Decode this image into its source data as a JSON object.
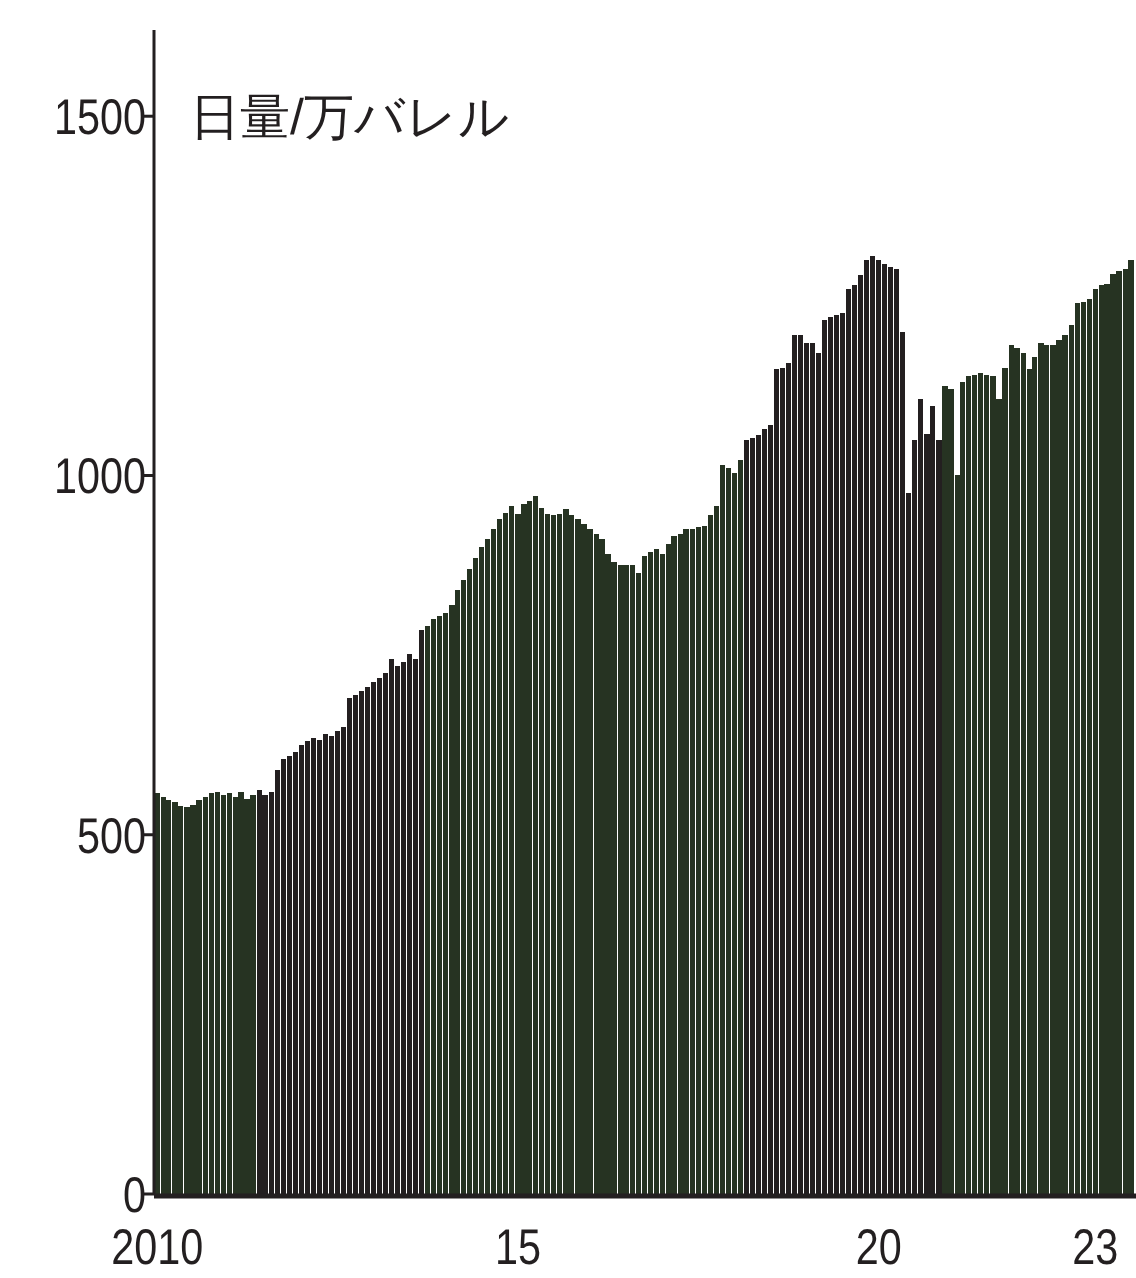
{
  "chart_data": {
    "type": "bar",
    "ylabel": "日量/万バレル",
    "xlim": [
      "2009-12-16",
      "2023-07-16"
    ],
    "ylim": [
      0,
      1620
    ],
    "xticks": [
      {
        "value": "2010-01",
        "label": "2010"
      },
      {
        "value": "2015-01",
        "label": "15"
      },
      {
        "value": "2020-01",
        "label": "20"
      },
      {
        "value": "2023-01",
        "label": "23"
      }
    ],
    "yticks": [
      0,
      500,
      1000,
      1500
    ],
    "series": [
      {
        "color": "#263322",
        "x": [
          "2010-01",
          "2010-02",
          "2010-03",
          "2010-04",
          "2010-05",
          "2010-06",
          "2010-07",
          "2010-08",
          "2010-09",
          "2010-10",
          "2010-11",
          "2010-12",
          "2011-01",
          "2011-02",
          "2011-03",
          "2011-04",
          "2011-05"
        ],
        "values": [
          558,
          552,
          548,
          545,
          540,
          538,
          542,
          548,
          552,
          558,
          560,
          555,
          558,
          552,
          560,
          550,
          555
        ]
      },
      {
        "color": "#231f20",
        "x": [
          "2011-06",
          "2011-07",
          "2011-08",
          "2011-09",
          "2011-10",
          "2011-11",
          "2011-12",
          "2012-01",
          "2012-02",
          "2012-03",
          "2012-04",
          "2012-05",
          "2012-06",
          "2012-07",
          "2012-08",
          "2012-09",
          "2012-10",
          "2012-11",
          "2012-12",
          "2013-01",
          "2013-02",
          "2013-03",
          "2013-04",
          "2013-05",
          "2013-06",
          "2013-07",
          "2013-08",
          "2013-09"
        ],
        "values": [
          562,
          555,
          560,
          590,
          605,
          610,
          615,
          625,
          630,
          635,
          632,
          640,
          638,
          645,
          650,
          690,
          695,
          700,
          705,
          712,
          718,
          725,
          744,
          735,
          740,
          752,
          745,
          785
        ]
      },
      {
        "color": "#263322",
        "x": [
          "2013-10",
          "2013-11",
          "2013-12",
          "2014-01",
          "2014-02",
          "2014-03",
          "2014-04",
          "2014-05",
          "2014-06",
          "2014-07",
          "2014-08",
          "2014-09",
          "2014-10",
          "2014-11",
          "2014-12",
          "2015-01",
          "2015-02",
          "2015-03",
          "2015-04",
          "2015-05",
          "2015-06",
          "2015-07",
          "2015-08",
          "2015-09",
          "2015-10",
          "2015-11",
          "2015-12",
          "2016-01",
          "2016-02",
          "2016-03",
          "2016-04",
          "2016-05",
          "2016-06",
          "2016-07",
          "2016-08",
          "2016-09",
          "2016-10",
          "2016-11",
          "2016-12",
          "2017-01",
          "2017-02",
          "2017-03",
          "2017-04",
          "2017-05",
          "2017-06",
          "2017-07",
          "2017-08",
          "2017-09",
          "2017-10",
          "2017-11",
          "2017-12",
          "2018-01",
          "2018-02"
        ],
        "values": [
          790,
          800,
          805,
          808,
          820,
          840,
          855,
          870,
          885,
          900,
          911,
          925,
          939,
          948,
          958,
          947,
          960,
          965,
          972,
          955,
          947,
          945,
          947,
          953,
          945,
          940,
          933,
          925,
          919,
          911,
          891,
          880,
          875,
          875,
          875,
          864,
          888,
          893,
          897,
          891,
          905,
          916,
          919,
          925,
          925,
          928,
          930,
          945,
          958,
          1014,
          1010,
          1003,
          1022
        ]
      },
      {
        "color": "#231f20",
        "x": [
          "2018-03",
          "2018-04",
          "2018-05",
          "2018-06",
          "2018-07",
          "2018-08",
          "2018-09",
          "2018-10",
          "2018-11",
          "2018-12",
          "2019-01",
          "2019-02",
          "2019-03",
          "2019-04",
          "2019-05",
          "2019-06",
          "2019-07",
          "2019-08",
          "2019-09",
          "2019-10",
          "2019-11",
          "2019-12",
          "2020-01",
          "2020-02",
          "2020-03",
          "2020-04",
          "2020-05",
          "2020-06",
          "2020-07",
          "2020-08",
          "2020-09",
          "2020-10",
          "2020-11"
        ],
        "values": [
          1050,
          1052,
          1056,
          1065,
          1070,
          1148,
          1150,
          1156,
          1195,
          1195,
          1184,
          1184,
          1170,
          1217,
          1220,
          1223,
          1226,
          1259,
          1265,
          1279,
          1300,
          1306,
          1300,
          1295,
          1290,
          1287,
          1200,
          975,
          1050,
          1106,
          1058,
          1097,
          1050
        ]
      },
      {
        "color": "#263322",
        "x": [
          "2020-12",
          "2021-01",
          "2021-02",
          "2021-03",
          "2021-04",
          "2021-05",
          "2021-06",
          "2021-07",
          "2021-08",
          "2021-09",
          "2021-10",
          "2021-11",
          "2021-12",
          "2022-01",
          "2022-02",
          "2022-03",
          "2022-04",
          "2022-05",
          "2022-06",
          "2022-07",
          "2022-08",
          "2022-09",
          "2022-10",
          "2022-11",
          "2022-12",
          "2023-01",
          "2023-02",
          "2023-03",
          "2023-04",
          "2023-05",
          "2023-06",
          "2023-07"
        ],
        "values": [
          1125,
          1120,
          1000,
          1130,
          1139,
          1140,
          1142,
          1140,
          1139,
          1106,
          1150,
          1181,
          1178,
          1170,
          1148,
          1165,
          1184,
          1182,
          1181,
          1189,
          1195,
          1209,
          1240,
          1242,
          1245,
          1260,
          1265,
          1267,
          1281,
          1285,
          1287,
          1300
        ]
      }
    ]
  }
}
